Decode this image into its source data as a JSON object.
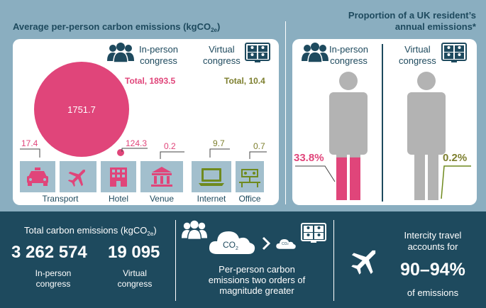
{
  "left_panel": {
    "title": "Average per-person carbon emissions (kgCO",
    "title_sub": "2e",
    "title_close": ")",
    "inperson_label_1": "In-person",
    "inperson_label_2": "congress",
    "virtual_label_1": "Virtual",
    "virtual_label_2": "congress",
    "inperson_total": "Total, 1893.5",
    "virtual_total": "Total, 10.4",
    "bubble_value": "1751.7",
    "categories": [
      {
        "name": "Transport",
        "value": "17.4",
        "icon": "taxi-icon"
      },
      {
        "name": "",
        "value": "",
        "icon": "airplane-icon"
      },
      {
        "name": "Hotel",
        "value": "124.3",
        "icon": "hotel-icon"
      },
      {
        "name": "Venue",
        "value": "0.2",
        "icon": "venue-icon"
      },
      {
        "name": "Internet",
        "value": "9.7",
        "icon": "laptop-icon"
      },
      {
        "name": "Office",
        "value": "0.7",
        "icon": "office-icon"
      }
    ],
    "colors": {
      "pink": "#e0457a",
      "olive": "#7d7f2e",
      "navy": "#1e4a5e"
    }
  },
  "right_panel": {
    "title_1": "Proportion of a UK resident’s",
    "title_2": "annual emissions*",
    "inperson_label_1": "In-person",
    "inperson_label_2": "congress",
    "virtual_label_1": "Virtual",
    "virtual_label_2": "congress",
    "inperson_pct": "33.8%",
    "virtual_pct": "0.2%",
    "inperson_fraction": 0.338,
    "virtual_fraction": 0.002
  },
  "bottom": {
    "total_title": "Total carbon emissions (kgCO",
    "total_title_sub": "2e",
    "total_title_close": ")",
    "inperson_total": "3 262 574",
    "inperson_label_1": "In-person",
    "inperson_label_2": "congress",
    "virtual_total": "19 095",
    "virtual_label_1": "Virtual",
    "virtual_label_2": "congress",
    "cloud_big": "CO",
    "cloud_big_sub": "2",
    "cloud_small": "CO",
    "cloud_small_sub": "2",
    "perperson_1": "Per-person carbon",
    "perperson_2": "emissions two orders of",
    "perperson_3": "magnitude greater",
    "intercity_1": "Intercity travel",
    "intercity_2": "accounts for",
    "intercity_pct": "90–94%",
    "intercity_3": "of emissions"
  }
}
